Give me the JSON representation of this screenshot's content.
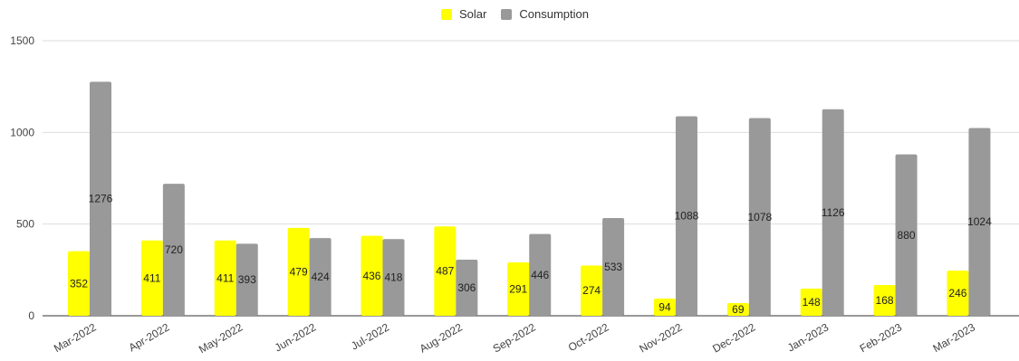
{
  "chart_data": {
    "type": "bar",
    "title": "",
    "xlabel": "",
    "ylabel": "",
    "ylim": [
      0,
      1500
    ],
    "yticks": [
      0,
      500,
      1000,
      1500
    ],
    "grid": true,
    "legend_position": "top-center",
    "categories": [
      "Mar-2022",
      "Apr-2022",
      "May-2022",
      "Jun-2022",
      "Jul-2022",
      "Aug-2022",
      "Sep-2022",
      "Oct-2022",
      "Nov-2022",
      "Dec-2022",
      "Jan-2023",
      "Feb-2023",
      "Mar-2023"
    ],
    "series": [
      {
        "name": "Solar",
        "color": "#ffff00",
        "values": [
          352,
          411,
          411,
          479,
          436,
          487,
          291,
          274,
          94,
          69,
          148,
          168,
          246
        ]
      },
      {
        "name": "Consumption",
        "color": "#999999",
        "values": [
          1276,
          720,
          393,
          424,
          418,
          306,
          446,
          533,
          1088,
          1078,
          1126,
          880,
          1024
        ]
      }
    ]
  }
}
